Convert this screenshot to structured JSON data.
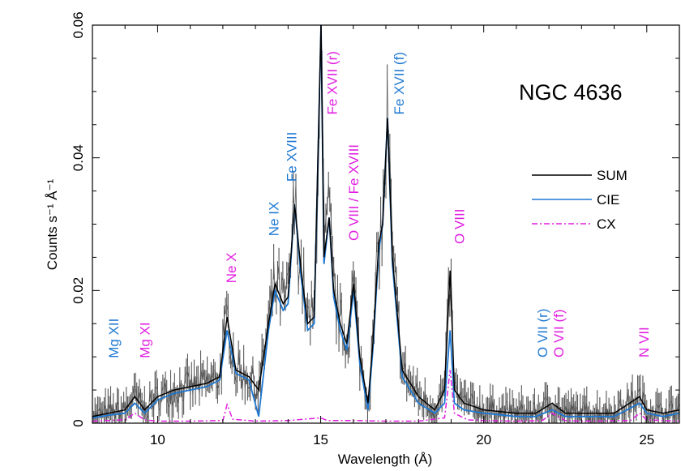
{
  "chart_data": {
    "type": "line",
    "title": "NGC 4636",
    "xlabel": "Wavelength (Å)",
    "ylabel": "Counts s⁻¹ Å⁻¹",
    "xlim": [
      8,
      26
    ],
    "ylim": [
      0,
      0.06
    ],
    "x_ticks": [
      10,
      15,
      20,
      25
    ],
    "x_tick_labels": [
      "10",
      "15",
      "20",
      "25"
    ],
    "y_ticks": [
      0,
      0.02,
      0.04,
      0.06
    ],
    "y_tick_labels": [
      "0",
      "0.02",
      "0.04",
      "0.06"
    ],
    "grid": false,
    "legend_position": "right",
    "colors": {
      "data": "#555555",
      "sum": "#000000",
      "cie": "#1e78d2",
      "cx": "#e01ee0"
    },
    "series": [
      {
        "name": "SUM",
        "style": "solid",
        "color": "#000000",
        "x": [
          8.0,
          8.5,
          9.0,
          9.3,
          9.6,
          10.0,
          10.5,
          11.0,
          11.5,
          11.9,
          12.13,
          12.4,
          12.8,
          13.1,
          13.4,
          13.6,
          13.85,
          14.0,
          14.2,
          14.4,
          14.6,
          14.8,
          15.01,
          15.1,
          15.26,
          15.4,
          15.6,
          15.8,
          16.01,
          16.2,
          16.45,
          16.6,
          16.78,
          16.9,
          17.05,
          17.2,
          17.5,
          18.0,
          18.5,
          18.8,
          18.97,
          19.1,
          19.4,
          20.0,
          21.0,
          21.6,
          22.1,
          22.5,
          23.0,
          24.0,
          24.78,
          25.0,
          25.5,
          26.0
        ],
        "values": [
          0.001,
          0.0015,
          0.002,
          0.004,
          0.002,
          0.004,
          0.005,
          0.0055,
          0.006,
          0.007,
          0.016,
          0.008,
          0.007,
          0.005,
          0.015,
          0.021,
          0.018,
          0.019,
          0.033,
          0.023,
          0.015,
          0.016,
          0.06,
          0.025,
          0.031,
          0.02,
          0.015,
          0.012,
          0.021,
          0.01,
          0.003,
          0.012,
          0.027,
          0.03,
          0.046,
          0.025,
          0.008,
          0.004,
          0.002,
          0.005,
          0.023,
          0.005,
          0.003,
          0.002,
          0.0015,
          0.0015,
          0.003,
          0.0015,
          0.0015,
          0.0015,
          0.004,
          0.002,
          0.0015,
          0.002
        ]
      },
      {
        "name": "CIE",
        "style": "solid",
        "color": "#1e78d2",
        "x": [
          8.0,
          8.5,
          9.0,
          9.3,
          9.6,
          10.0,
          10.5,
          11.0,
          11.5,
          11.9,
          12.13,
          12.4,
          12.8,
          13.1,
          13.4,
          13.6,
          13.85,
          14.0,
          14.2,
          14.4,
          14.6,
          14.8,
          15.01,
          15.1,
          15.26,
          15.4,
          15.6,
          15.8,
          16.01,
          16.2,
          16.45,
          16.6,
          16.78,
          16.9,
          17.05,
          17.2,
          17.5,
          18.0,
          18.5,
          18.8,
          18.97,
          19.1,
          19.4,
          20.0,
          21.0,
          21.6,
          22.1,
          22.5,
          23.0,
          24.0,
          24.78,
          25.0,
          25.5,
          26.0
        ],
        "values": [
          0.0008,
          0.0012,
          0.0015,
          0.003,
          0.0015,
          0.0035,
          0.0045,
          0.005,
          0.0055,
          0.0065,
          0.014,
          0.0075,
          0.0065,
          0.001,
          0.014,
          0.02,
          0.017,
          0.018,
          0.033,
          0.022,
          0.014,
          0.015,
          0.06,
          0.024,
          0.031,
          0.019,
          0.014,
          0.011,
          0.02,
          0.009,
          0.002,
          0.011,
          0.026,
          0.03,
          0.046,
          0.024,
          0.007,
          0.003,
          0.0015,
          0.003,
          0.014,
          0.003,
          0.002,
          0.0015,
          0.001,
          0.001,
          0.002,
          0.001,
          0.001,
          0.001,
          0.003,
          0.0015,
          0.001,
          0.0015
        ]
      },
      {
        "name": "CX",
        "style": "dash-dot",
        "color": "#e01ee0",
        "x": [
          8.0,
          9.0,
          9.3,
          9.6,
          10.0,
          11.0,
          12.0,
          12.13,
          12.3,
          13.0,
          14.0,
          15.0,
          15.2,
          16.0,
          17.0,
          18.0,
          18.8,
          18.97,
          19.1,
          19.5,
          20.0,
          21.0,
          21.8,
          22.1,
          22.5,
          23.0,
          24.5,
          24.78,
          25.0,
          26.0
        ],
        "values": [
          0.0003,
          0.0005,
          0.0015,
          0.0005,
          0.0003,
          0.0003,
          0.0004,
          0.0028,
          0.0006,
          0.0003,
          0.0004,
          0.0008,
          0.0004,
          0.0004,
          0.0003,
          0.0003,
          0.0008,
          0.008,
          0.0015,
          0.0005,
          0.0004,
          0.0003,
          0.0004,
          0.0015,
          0.0004,
          0.0003,
          0.0004,
          0.0015,
          0.0005,
          0.0003
        ]
      }
    ],
    "line_labels": [
      {
        "text": "Mg XII",
        "x": 8.8,
        "y": 0.0098,
        "color": "#1e78d2"
      },
      {
        "text": "Mg XI",
        "x": 9.75,
        "y": 0.0098,
        "color": "#e01ee0"
      },
      {
        "text": "Ne X",
        "x": 12.4,
        "y": 0.0211,
        "color": "#e01ee0"
      },
      {
        "text": "Ne IX",
        "x": 13.7,
        "y": 0.0282,
        "color": "#1e78d2"
      },
      {
        "text": "Fe XVIII",
        "x": 14.25,
        "y": 0.0364,
        "color": "#1e78d2"
      },
      {
        "text": "Fe XVII (r)",
        "x": 15.5,
        "y": 0.0465,
        "color": "#e01ee0"
      },
      {
        "text": "O VIII / Fe XVIII",
        "x": 16.15,
        "y": 0.0275,
        "color": "#e01ee0"
      },
      {
        "text": "Fe XVII (f)",
        "x": 17.55,
        "y": 0.0465,
        "color": "#1e78d2"
      },
      {
        "text": "O VIII",
        "x": 19.4,
        "y": 0.027,
        "color": "#e01ee0"
      },
      {
        "text": "O VII (r)",
        "x": 21.95,
        "y": 0.0099,
        "color": "#1e78d2"
      },
      {
        "text": "O VII (f)",
        "x": 22.45,
        "y": 0.0099,
        "color": "#e01ee0"
      },
      {
        "text": "N VII",
        "x": 25.05,
        "y": 0.0099,
        "color": "#e01ee0"
      }
    ]
  }
}
